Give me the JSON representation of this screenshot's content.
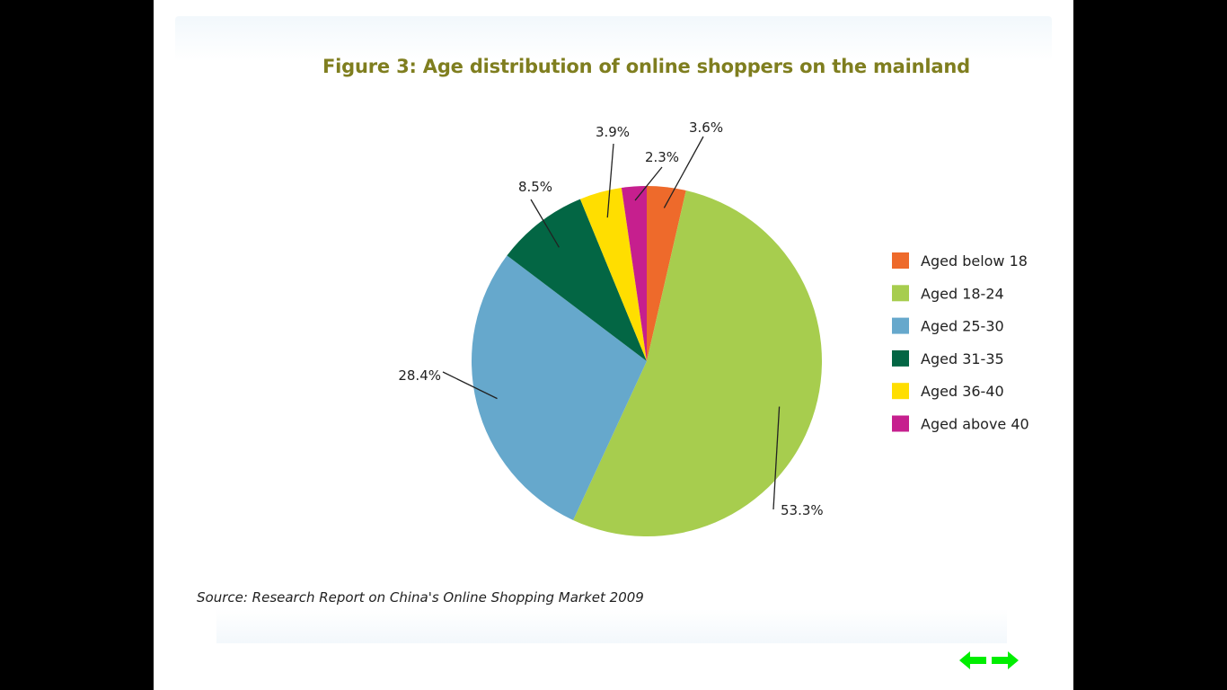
{
  "chart_data": {
    "type": "pie",
    "title": "Figure 3: Age distribution of online shoppers on the mainland",
    "categories": [
      "Aged below 18",
      "Aged 18-24",
      "Aged 25-30",
      "Aged 31-35",
      "Aged 36-40",
      "Aged above 40"
    ],
    "values": [
      3.6,
      53.3,
      28.4,
      8.5,
      3.9,
      2.3
    ],
    "value_labels": [
      "3.6%",
      "53.3%",
      "28.4%",
      "8.5%",
      "3.9%",
      "2.3%"
    ],
    "colors": [
      "#ee6a2b",
      "#a7cd4e",
      "#66a8cc",
      "#036644",
      "#ffde00",
      "#c61f8e"
    ],
    "legend": "right"
  },
  "source": "Source: Research Report on China's Online Shopping Market 2009",
  "nav": {
    "prev_icon": "arrow-left-icon",
    "next_icon": "arrow-right-icon",
    "color": "#00ee00"
  }
}
